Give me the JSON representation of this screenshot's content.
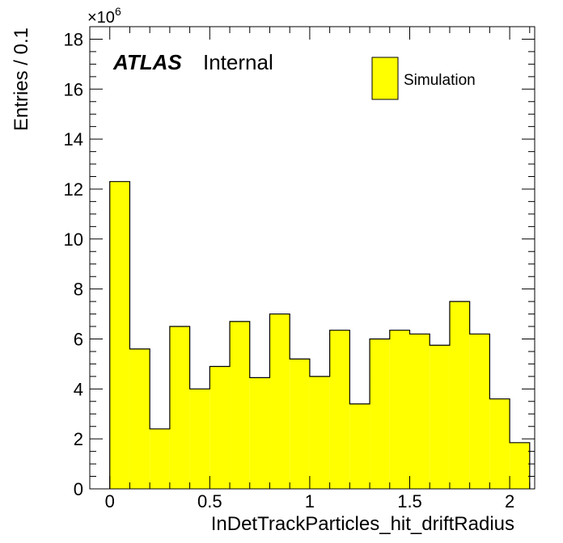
{
  "chart_data": {
    "type": "bar",
    "xlabel": "InDetTrackParticles_hit_driftRadius",
    "ylabel": "Entries / 0.1",
    "y_multiplier_base": "×10",
    "y_multiplier_exp": "6",
    "xlim": [
      -0.1,
      2.125
    ],
    "ylim": [
      0,
      18.5
    ],
    "bin_width": 0.1,
    "x_ticks": [
      0,
      0.5,
      1,
      1.5,
      2
    ],
    "x_tick_labels": [
      "0",
      "0.5",
      "1",
      "1.5",
      "2"
    ],
    "y_ticks": [
      0,
      2,
      4,
      6,
      8,
      10,
      12,
      14,
      16,
      18
    ],
    "y_tick_labels": [
      "0",
      "2",
      "4",
      "6",
      "8",
      "10",
      "12",
      "14",
      "16",
      "18"
    ],
    "bins": [
      0.0,
      0.1,
      0.2,
      0.3,
      0.4,
      0.5,
      0.6,
      0.7,
      0.8,
      0.9,
      1.0,
      1.1,
      1.2,
      1.3,
      1.4,
      1.5,
      1.6,
      1.7,
      1.8,
      1.9,
      2.0
    ],
    "series": [
      {
        "name": "Simulation",
        "color": "#ffff00",
        "values": [
          12.3,
          5.6,
          2.4,
          6.5,
          4.0,
          4.9,
          6.7,
          4.45,
          7.0,
          5.2,
          4.5,
          6.35,
          3.4,
          6.0,
          6.35,
          6.2,
          5.75,
          7.5,
          6.2,
          3.6,
          1.85
        ]
      }
    ],
    "atlas_label": "ATLAS",
    "atlas_status": "Internal",
    "legend_position": "top-right"
  }
}
